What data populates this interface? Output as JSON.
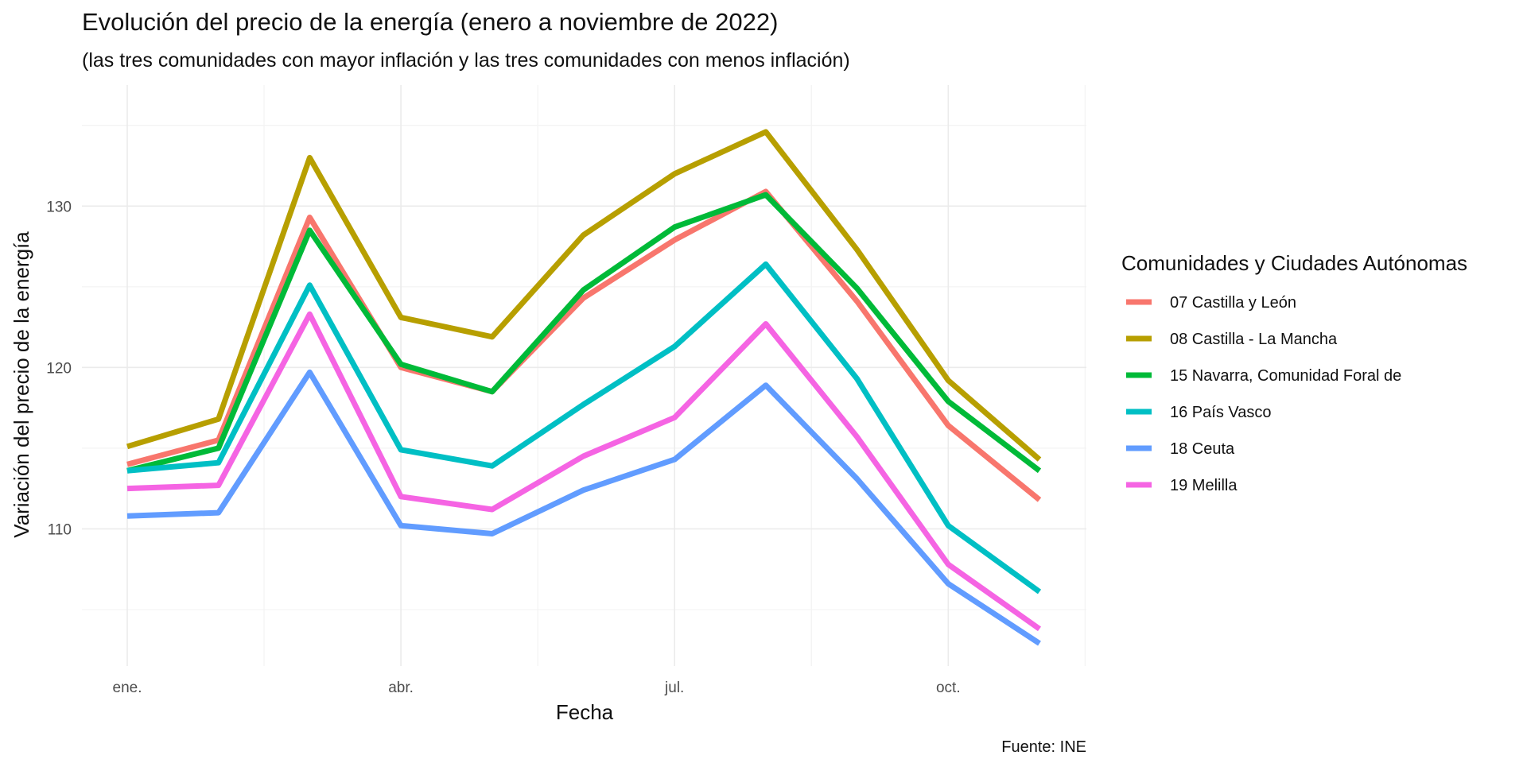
{
  "chart_data": {
    "type": "line",
    "title": "Evolución del precio de la energía (enero a noviembre de 2022)",
    "subtitle": "(las tres comunidades con mayor inflación y las tres comunidades con menos inflación)",
    "xlabel": "Fecha",
    "ylabel": "Variación del precio de la energía",
    "caption": "Fuente: INE",
    "legend_title": "Comunidades y Ciudades Autónomas",
    "legend_position": "right",
    "grid": true,
    "x": [
      "2022-01",
      "2022-02",
      "2022-03",
      "2022-04",
      "2022-05",
      "2022-06",
      "2022-07",
      "2022-08",
      "2022-09",
      "2022-10",
      "2022-11"
    ],
    "x_ticks": [
      {
        "month_index": 0,
        "label": "ene."
      },
      {
        "month_index": 3,
        "label": "abr."
      },
      {
        "month_index": 6,
        "label": "jul."
      },
      {
        "month_index": 9,
        "label": "oct."
      }
    ],
    "y_ticks": [
      110,
      120,
      130
    ],
    "ylim": [
      101.5,
      137.5
    ],
    "series": [
      {
        "name": "07 Castilla y León",
        "color": "#F8766D",
        "values": [
          114.0,
          115.5,
          129.3,
          120.0,
          118.5,
          124.3,
          127.9,
          130.9,
          124.1,
          116.4,
          111.8
        ]
      },
      {
        "name": "08 Castilla - La Mancha",
        "color": "#B79F00",
        "values": [
          115.1,
          116.8,
          133.0,
          123.1,
          121.9,
          128.2,
          132.0,
          134.6,
          127.3,
          119.2,
          114.3
        ]
      },
      {
        "name": "15 Navarra, Comunidad Foral de",
        "color": "#00BA38",
        "values": [
          113.6,
          115.0,
          128.5,
          120.2,
          118.5,
          124.8,
          128.7,
          130.7,
          124.9,
          117.9,
          113.6
        ]
      },
      {
        "name": "16 País Vasco",
        "color": "#00BFC4",
        "values": [
          113.6,
          114.1,
          125.1,
          114.9,
          113.9,
          117.7,
          121.3,
          126.4,
          119.3,
          110.2,
          106.1
        ]
      },
      {
        "name": "18 Ceuta",
        "color": "#619CFF",
        "values": [
          110.8,
          111.0,
          119.7,
          110.2,
          109.7,
          112.4,
          114.3,
          118.9,
          113.1,
          106.6,
          102.9
        ]
      },
      {
        "name": "19 Melilla",
        "color": "#F564E3",
        "values": [
          112.5,
          112.7,
          123.3,
          112.0,
          111.2,
          114.5,
          116.9,
          122.7,
          115.7,
          107.8,
          103.8
        ]
      }
    ]
  }
}
